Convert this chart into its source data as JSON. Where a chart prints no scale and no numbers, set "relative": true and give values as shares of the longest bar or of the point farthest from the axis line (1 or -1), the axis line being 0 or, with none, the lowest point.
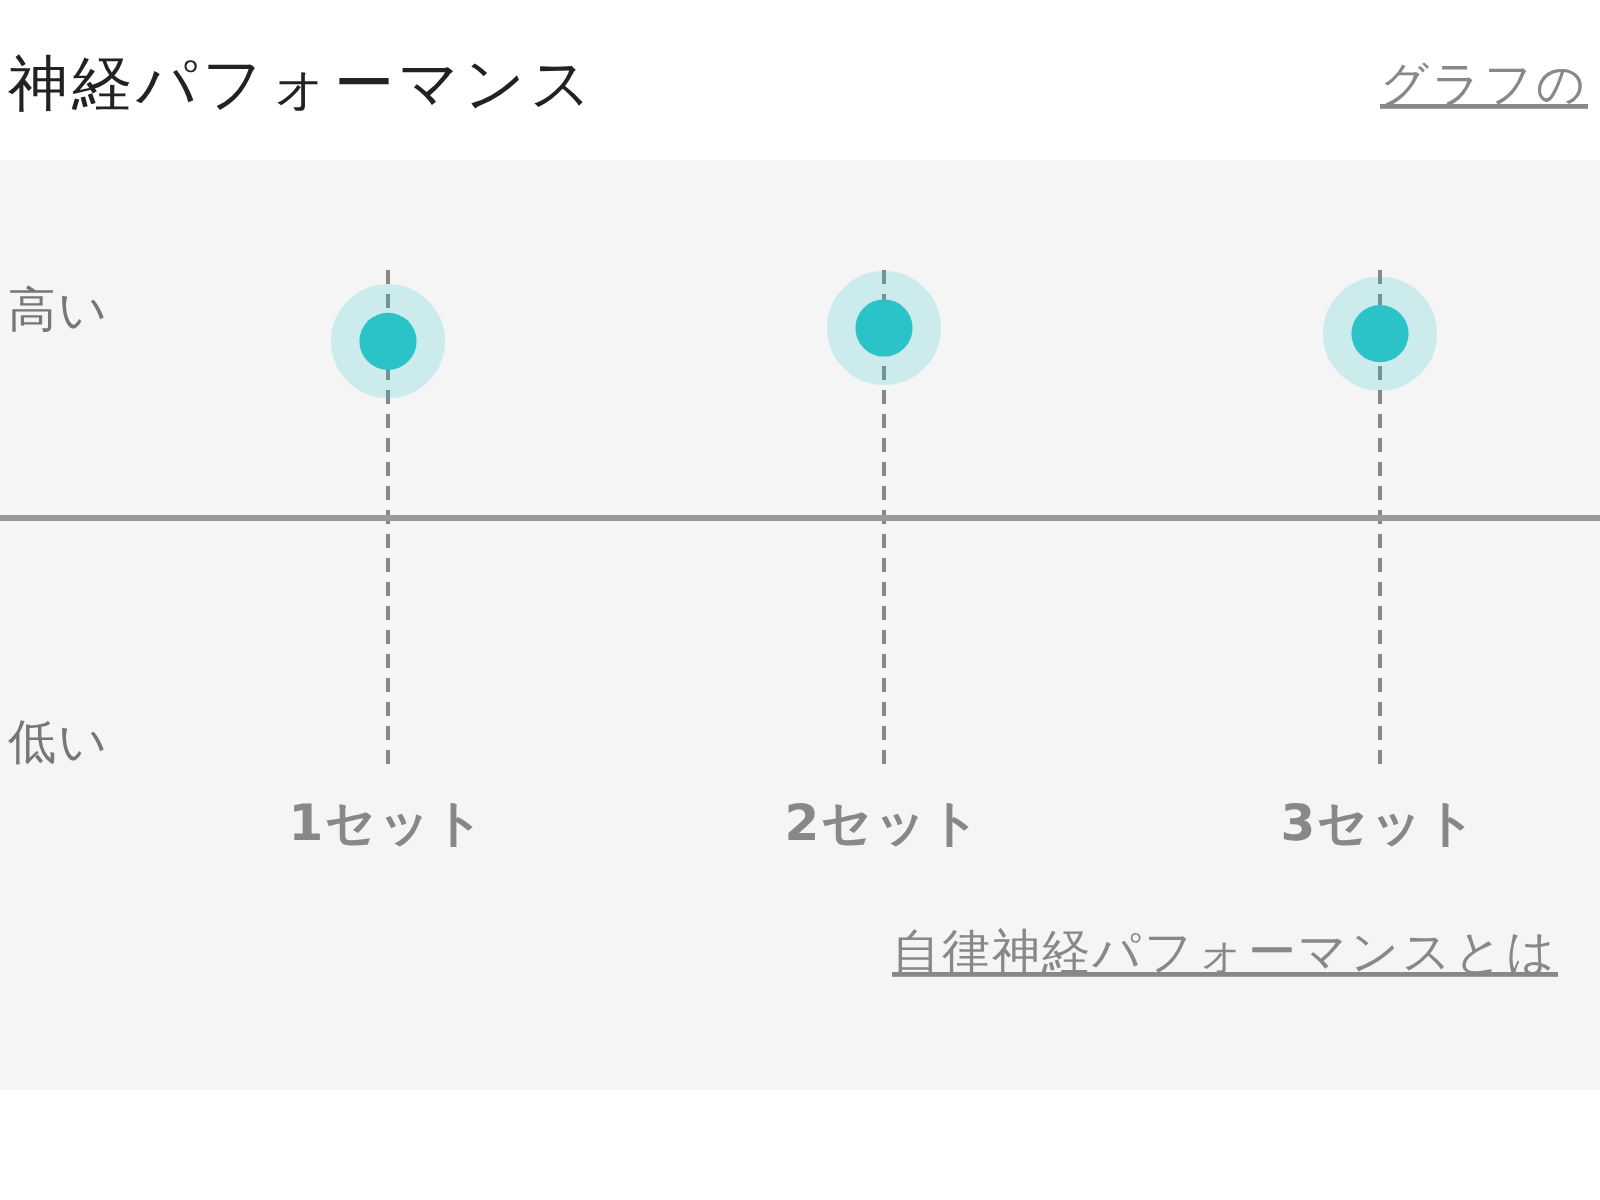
{
  "chart_data": {
    "type": "scatter",
    "title": "神経パフォーマンス",
    "categories": [
      "1セット",
      "2セット",
      "3セット"
    ],
    "values": [
      0.93,
      1,
      0.97
    ],
    "color": "#2ac3c7",
    "relative": true,
    "grid": "x",
    "marker": "circle",
    "annotations": [
      "高い",
      "低い",
      "グラフの",
      "自律神経パフォーマンスとは"
    ]
  }
}
